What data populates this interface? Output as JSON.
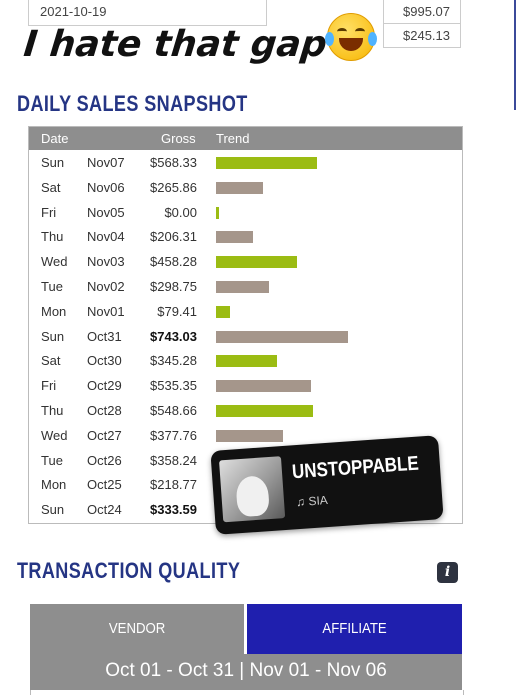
{
  "top_table": {
    "date": "2021-10-19",
    "amounts": [
      "$995.07",
      "$245.13"
    ]
  },
  "caption": {
    "text": "I hate that gap",
    "emoji": "face-with-tears-of-joy-icon"
  },
  "daily": {
    "title": "DAILY SALES SNAPSHOT",
    "headers": {
      "date": "Date",
      "gross": "Gross",
      "trend": "Trend"
    },
    "rows": [
      {
        "day": "Sun",
        "date": "Nov07",
        "gross": "$568.33",
        "value": 568.33,
        "color": "#9bbc13",
        "bold": false
      },
      {
        "day": "Sat",
        "date": "Nov06",
        "gross": "$265.86",
        "value": 265.86,
        "color": "#a5968b",
        "bold": false
      },
      {
        "day": "Fri",
        "date": "Nov05",
        "gross": "$0.00",
        "value": 0.0,
        "color": "#9bbc13",
        "bold": false
      },
      {
        "day": "Thu",
        "date": "Nov04",
        "gross": "$206.31",
        "value": 206.31,
        "color": "#a5968b",
        "bold": false
      },
      {
        "day": "Wed",
        "date": "Nov03",
        "gross": "$458.28",
        "value": 458.28,
        "color": "#9bbc13",
        "bold": false
      },
      {
        "day": "Tue",
        "date": "Nov02",
        "gross": "$298.75",
        "value": 298.75,
        "color": "#a5968b",
        "bold": false
      },
      {
        "day": "Mon",
        "date": "Nov01",
        "gross": "$79.41",
        "value": 79.41,
        "color": "#9bbc13",
        "bold": false
      },
      {
        "day": "Sun",
        "date": "Oct31",
        "gross": "$743.03",
        "value": 743.03,
        "color": "#a5968b",
        "bold": true
      },
      {
        "day": "Sat",
        "date": "Oct30",
        "gross": "$345.28",
        "value": 345.28,
        "color": "#9bbc13",
        "bold": false
      },
      {
        "day": "Fri",
        "date": "Oct29",
        "gross": "$535.35",
        "value": 535.35,
        "color": "#a5968b",
        "bold": false
      },
      {
        "day": "Thu",
        "date": "Oct28",
        "gross": "$548.66",
        "value": 548.66,
        "color": "#9bbc13",
        "bold": false
      },
      {
        "day": "Wed",
        "date": "Oct27",
        "gross": "$377.76",
        "value": 377.76,
        "color": "#a5968b",
        "bold": false
      },
      {
        "day": "Tue",
        "date": "Oct26",
        "gross": "$358.24",
        "value": 358.24,
        "color": "#9bbc13",
        "bold": false
      },
      {
        "day": "Mon",
        "date": "Oct25",
        "gross": "$218.77",
        "value": 218.77,
        "color": "#a5968b",
        "bold": false
      },
      {
        "day": "Sun",
        "date": "Oct24",
        "gross": "$333.59",
        "value": 333.59,
        "color": "#9bbc13",
        "bold": true
      }
    ]
  },
  "music_sticker": {
    "song": "UNSTOPPABLE",
    "artist": "♫ SIA"
  },
  "quality": {
    "title": "TRANSACTION QUALITY",
    "info_icon": "info-icon",
    "tabs": [
      {
        "label": "VENDOR",
        "color": "#8e8e8e"
      },
      {
        "label": "AFFILIATE",
        "color": "#1f1fae"
      }
    ],
    "range": "Oct 01 - Oct 31 | Nov 01 - Nov 06"
  }
}
